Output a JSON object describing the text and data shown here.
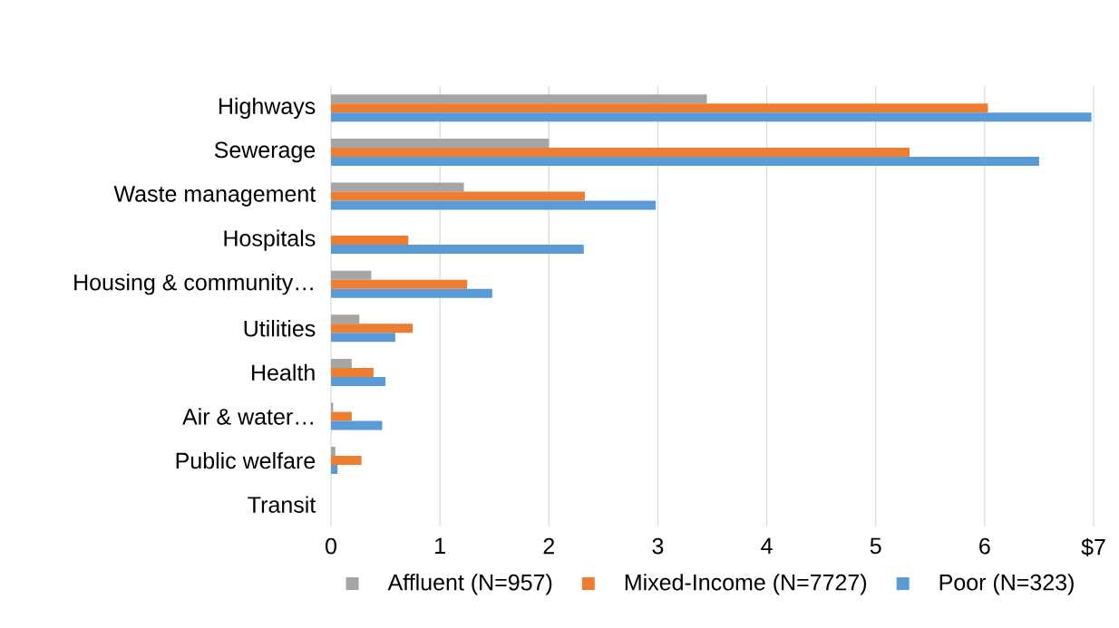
{
  "chart_data": {
    "type": "bar",
    "orientation": "horizontal",
    "categories": [
      "Highways",
      "Sewerage",
      "Waste management",
      "Hospitals",
      "Housing & community…",
      "Utilities",
      "Health",
      "Air & water…",
      "Public welfare",
      "Transit"
    ],
    "series": [
      {
        "name": "Affluent (N=957)",
        "color": "#a5a5a5",
        "values": [
          3.45,
          2.0,
          1.22,
          0,
          0.37,
          0.26,
          0.19,
          0.02,
          0.04,
          0
        ]
      },
      {
        "name": "Mixed-Income (N=7727)",
        "color": "#ed7d31",
        "values": [
          6.03,
          5.31,
          2.33,
          0.71,
          1.25,
          0.75,
          0.39,
          0.19,
          0.28,
          0
        ]
      },
      {
        "name": "Poor (N=323)",
        "color": "#5b9bd5",
        "values": [
          6.98,
          6.5,
          2.98,
          2.32,
          1.48,
          0.59,
          0.5,
          0.47,
          0.06,
          0
        ]
      }
    ],
    "xlim": [
      0,
      7
    ],
    "xticks": [
      0,
      1,
      2,
      3,
      4,
      5,
      6,
      {
        "value": 7,
        "label": "$7"
      }
    ],
    "grid": "x",
    "legend": "bottom"
  }
}
